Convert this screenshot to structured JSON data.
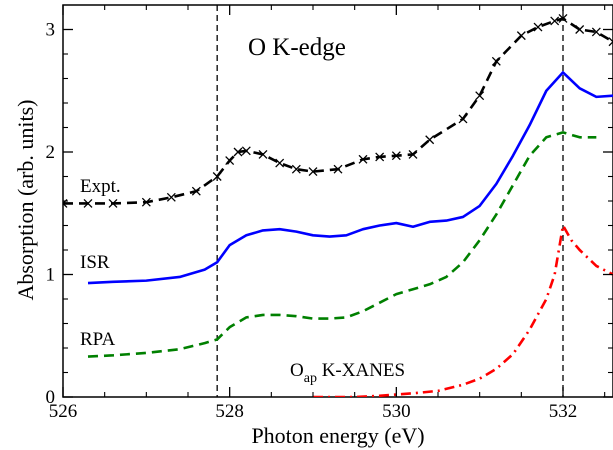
{
  "chart_data": {
    "type": "line",
    "title": "O K-edge",
    "xlabel": "Photon energy (eV)",
    "ylabel": "Absorption (arb. units)",
    "xlim": [
      526,
      532.6
    ],
    "ylim": [
      0,
      3.2
    ],
    "xticks": [
      526,
      528,
      530,
      532
    ],
    "yticks": [
      0,
      1,
      2,
      3
    ],
    "xtick_labels": [
      "526",
      "528",
      "530",
      "532"
    ],
    "ytick_labels": [
      "0",
      "1",
      "2",
      "3"
    ],
    "grid": false,
    "vlines": [
      527.85,
      532.0
    ],
    "series": [
      {
        "name": "Expt.",
        "color": "#000000",
        "style": "dashed",
        "marker": "x",
        "x": [
          526.0,
          526.3,
          526.6,
          527.0,
          527.3,
          527.6,
          527.85,
          528.0,
          528.1,
          528.2,
          528.4,
          528.6,
          528.8,
          529.0,
          529.3,
          529.6,
          529.8,
          530.0,
          530.2,
          530.4,
          530.8,
          531.0,
          531.2,
          531.5,
          531.7,
          531.9,
          532.0,
          532.2,
          532.4,
          532.6
        ],
        "y": [
          1.58,
          1.58,
          1.58,
          1.59,
          1.63,
          1.68,
          1.8,
          1.93,
          2.0,
          2.01,
          1.98,
          1.91,
          1.86,
          1.84,
          1.86,
          1.94,
          1.96,
          1.97,
          1.98,
          2.1,
          2.27,
          2.46,
          2.74,
          2.95,
          3.02,
          3.07,
          3.09,
          3.0,
          2.98,
          2.9
        ]
      },
      {
        "name": "ISR",
        "color": "#0000ff",
        "style": "solid",
        "x": [
          526.3,
          526.6,
          527.0,
          527.4,
          527.7,
          527.85,
          528.0,
          528.2,
          528.4,
          528.6,
          528.8,
          529.0,
          529.2,
          529.4,
          529.6,
          529.8,
          530.0,
          530.2,
          530.4,
          530.6,
          530.8,
          531.0,
          531.2,
          531.4,
          531.6,
          531.8,
          532.0,
          532.2,
          532.4,
          532.6
        ],
        "y": [
          0.93,
          0.94,
          0.95,
          0.98,
          1.04,
          1.1,
          1.24,
          1.32,
          1.36,
          1.37,
          1.35,
          1.32,
          1.31,
          1.32,
          1.37,
          1.4,
          1.42,
          1.39,
          1.43,
          1.44,
          1.47,
          1.56,
          1.74,
          1.97,
          2.22,
          2.5,
          2.65,
          2.52,
          2.45,
          2.46
        ]
      },
      {
        "name": "RPA",
        "color": "#008000",
        "style": "dashed",
        "x": [
          526.3,
          526.6,
          527.0,
          527.4,
          527.7,
          527.85,
          528.0,
          528.2,
          528.4,
          528.6,
          528.8,
          529.0,
          529.2,
          529.4,
          529.6,
          529.8,
          530.0,
          530.2,
          530.4,
          530.6,
          530.8,
          531.0,
          531.2,
          531.4,
          531.6,
          531.8,
          532.0,
          532.2,
          532.4
        ],
        "y": [
          0.33,
          0.34,
          0.36,
          0.39,
          0.44,
          0.47,
          0.57,
          0.65,
          0.67,
          0.67,
          0.66,
          0.64,
          0.64,
          0.65,
          0.7,
          0.77,
          0.84,
          0.88,
          0.92,
          0.98,
          1.1,
          1.28,
          1.49,
          1.73,
          1.97,
          2.12,
          2.16,
          2.12,
          2.12
        ]
      },
      {
        "name": "O_ap K-XANES",
        "color": "#ff0000",
        "style": "dashdot",
        "x": [
          529.0,
          529.5,
          529.8,
          530.0,
          530.2,
          530.5,
          530.8,
          531.0,
          531.2,
          531.4,
          531.6,
          531.8,
          531.9,
          532.0,
          532.1,
          532.2,
          532.4,
          532.6
        ],
        "y": [
          0.0,
          0.0,
          0.01,
          0.02,
          0.03,
          0.05,
          0.1,
          0.15,
          0.23,
          0.35,
          0.55,
          0.8,
          1.0,
          1.4,
          1.28,
          1.2,
          1.07,
          1.0
        ]
      }
    ],
    "annotations": {
      "expt_label": "Expt.",
      "isr_label": "ISR",
      "rpa_label": "RPA",
      "xanes_main": "O",
      "xanes_sub": "ap",
      "xanes_rest": " K-XANES"
    }
  }
}
